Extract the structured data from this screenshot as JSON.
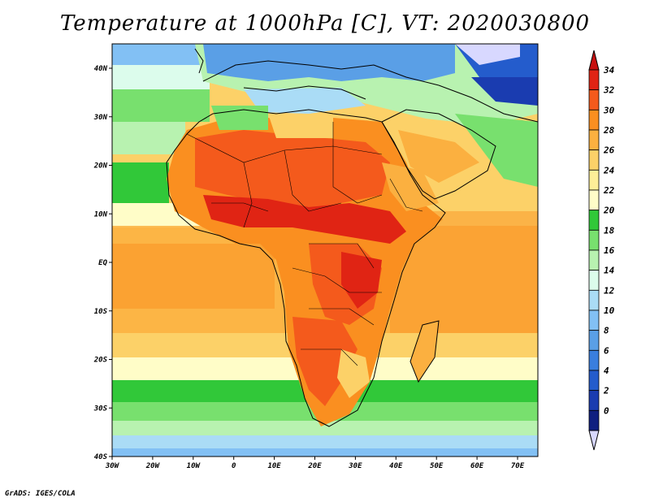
{
  "title": "Temperature at 1000hPa [C], VT: 2020030800",
  "credit": "GrADS: IGES/COLA",
  "lat_labels": [
    "40N",
    "30N",
    "20N",
    "10N",
    "EQ",
    "10S",
    "20S",
    "30S",
    "40S"
  ],
  "lon_labels": [
    "30W",
    "20W",
    "10W",
    "0",
    "10E",
    "20E",
    "30E",
    "40E",
    "50E",
    "60E",
    "70E"
  ],
  "colorbar": {
    "labels": [
      "34",
      "32",
      "30",
      "28",
      "26",
      "24",
      "22",
      "20",
      "18",
      "16",
      "14",
      "12",
      "10",
      "8",
      "6",
      "4",
      "2",
      "0"
    ],
    "colors": [
      "#e02414",
      "#f45a1c",
      "#fa8f20",
      "#fbb040",
      "#fcd168",
      "#fdee98",
      "#fffdc8",
      "#31c839",
      "#78e06e",
      "#b8f2b0",
      "#dcfcec",
      "#aadcf6",
      "#82c0f4",
      "#5a9fe6",
      "#3a7ede",
      "#245ccc",
      "#1a3cb0",
      "#0f1f80"
    ],
    "top_color": "#c81010",
    "bottom_color": "#d8d8ff"
  }
}
